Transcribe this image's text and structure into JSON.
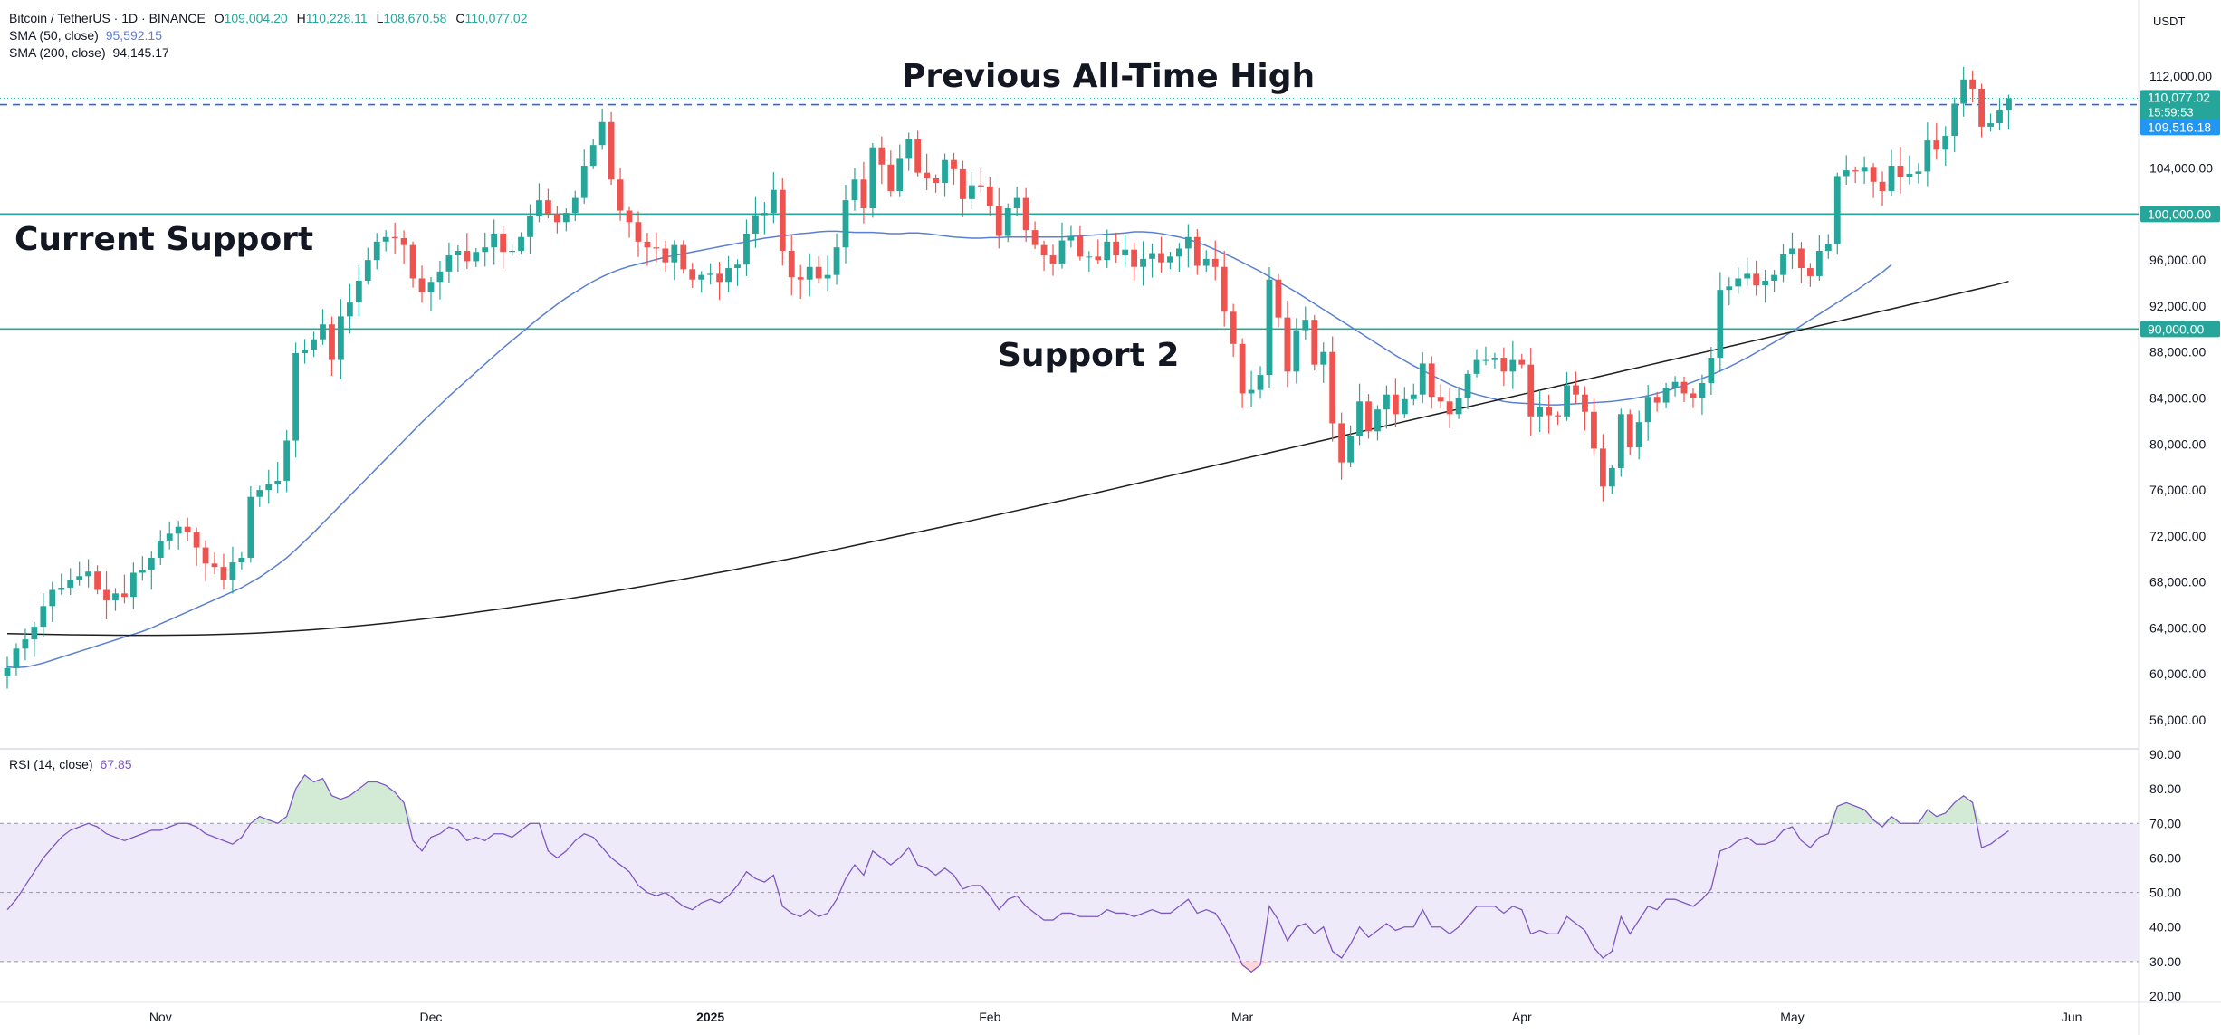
{
  "header": {
    "symbol": "Bitcoin / TetherUS · 1D · BINANCE",
    "ohlc": [
      {
        "key": "O",
        "value": "109,004.20"
      },
      {
        "key": "H",
        "value": "110,228.11"
      },
      {
        "key": "L",
        "value": "108,670.58"
      },
      {
        "key": "C",
        "value": "110,077.02"
      }
    ],
    "sma50_label": "SMA (50, close)",
    "sma50_value": "95,592.15",
    "sma200_label": "SMA (200, close)",
    "sma200_value": "94,145.17",
    "rsi_label": "RSI (14, close)",
    "rsi_value": "67.85",
    "currency": "USDT"
  },
  "annotations": {
    "ath_label": "Previous All-Time High",
    "support_label": "Current Support",
    "support2_label": "Support 2"
  },
  "price_tags": {
    "last_price": "110,077.02",
    "countdown": "15:59:53",
    "prev_level": "109,516.18",
    "support": "100,000.00",
    "support2": "90,000.00"
  },
  "colors": {
    "up": "#26a69a",
    "down": "#ef5350",
    "sma50": "#5b7fd2",
    "sma200": "#1e1e1e",
    "support_line": "#26a69a",
    "ath_line": "#2962ff",
    "rsi_line": "#7e57c2",
    "rsi_band": "#efeafa",
    "tag_blue": "#2196f3",
    "tag_green": "#26a69a"
  },
  "chart_data": [
    {
      "type": "candlestick",
      "title": "Bitcoin / TetherUS · 1D · BINANCE",
      "ylabel": "USDT",
      "ylim": [
        54000,
        116000
      ],
      "y_ticks": [
        "56,000.00",
        "60,000.00",
        "64,000.00",
        "68,000.00",
        "72,000.00",
        "76,000.00",
        "80,000.00",
        "84,000.00",
        "88,000.00",
        "92,000.00",
        "96,000.00",
        "104,000.00",
        "112,000.00"
      ],
      "x_ticks": [
        "Nov",
        "Dec",
        "2025",
        "Feb",
        "Mar",
        "Apr",
        "May",
        "Jun"
      ],
      "x_tick_bold": "2025",
      "x_tick_days": [
        17,
        47,
        78,
        109,
        137,
        168,
        198,
        229
      ],
      "start_day_index": 0,
      "start_date": "2024-10-15",
      "horizontal_levels": [
        {
          "name": "Previous All-Time High",
          "value": 109516,
          "style": "dashed"
        },
        {
          "name": "Current Support",
          "value": 100000,
          "style": "solid"
        },
        {
          "name": "Support 2",
          "value": 90000,
          "style": "solid"
        }
      ],
      "close": [
        60500,
        62200,
        63000,
        64100,
        65900,
        67300,
        67500,
        68200,
        68500,
        68900,
        67300,
        66400,
        67000,
        66700,
        68800,
        69000,
        70100,
        71600,
        72200,
        72800,
        72300,
        71000,
        69600,
        69300,
        68200,
        69700,
        70100,
        75400,
        76000,
        76500,
        76800,
        80300,
        87900,
        88200,
        89100,
        90400,
        87300,
        91100,
        92300,
        94200,
        96000,
        97600,
        98000,
        97900,
        97300,
        94400,
        93200,
        94100,
        95000,
        96400,
        96800,
        95900,
        96700,
        97100,
        98300,
        96700,
        96800,
        98000,
        99800,
        101200,
        100000,
        99300,
        100100,
        101400,
        104200,
        106000,
        108000,
        103000,
        100300,
        99300,
        97600,
        97100,
        97000,
        95800,
        97300,
        95200,
        94300,
        94700,
        94800,
        94100,
        95300,
        95600,
        98300,
        99900,
        100100,
        102100,
        96800,
        94500,
        94300,
        95400,
        94400,
        94700,
        97100,
        101200,
        103000,
        100500,
        105800,
        104300,
        102000,
        104800,
        106500,
        103600,
        103100,
        102700,
        104700,
        103900,
        101300,
        102500,
        102400,
        100700,
        98100,
        100500,
        101400,
        98600,
        97300,
        96400,
        95700,
        97700,
        98100,
        96300,
        96300,
        96000,
        97600,
        96400,
        96900,
        95400,
        96100,
        96600,
        95800,
        96300,
        97000,
        98000,
        95500,
        96100,
        95400,
        91500,
        88700,
        84400,
        84700,
        86000,
        94300,
        91000,
        86300,
        89900,
        90800,
        86900,
        88000,
        81800,
        78400,
        80700,
        83700,
        81100,
        83000,
        84300,
        82600,
        83900,
        84300,
        87000,
        84100,
        83700,
        82600,
        84000,
        86100,
        87300,
        87300,
        87500,
        86300,
        87300,
        86900,
        82400,
        83200,
        82500,
        82400,
        85100,
        84300,
        82800,
        79600,
        76300,
        77900,
        82600,
        79700,
        81900,
        84100,
        83600,
        84900,
        85400,
        84400,
        84000,
        85300,
        87500,
        93400,
        93700,
        94400,
        94800,
        93800,
        94200,
        94700,
        96500,
        97000,
        95300,
        94600,
        96800,
        97400,
        103300,
        103800,
        103700,
        104100,
        102800,
        102000,
        104200,
        103200,
        103500,
        103700,
        106400,
        105600,
        106800,
        109600,
        111700,
        110900,
        107600,
        107900,
        109000,
        110077
      ],
      "open_first": 59800,
      "sma50": [
        60600,
        60550,
        60600,
        60750,
        60950,
        61200,
        61450,
        61700,
        61950,
        62200,
        62450,
        62700,
        62950,
        63200,
        63450,
        63700,
        64000,
        64350,
        64700,
        65050,
        65400,
        65750,
        66100,
        66450,
        66800,
        67150,
        67500,
        67950,
        68400,
        68950,
        69500,
        70100,
        70800,
        71550,
        72300,
        73100,
        73900,
        74700,
        75500,
        76300,
        77100,
        77900,
        78700,
        79500,
        80300,
        81100,
        81900,
        82650,
        83400,
        84150,
        84850,
        85550,
        86250,
        86950,
        87650,
        88350,
        89000,
        89650,
        90300,
        90950,
        91550,
        92150,
        92700,
        93200,
        93700,
        94150,
        94550,
        94900,
        95200,
        95450,
        95650,
        95850,
        96050,
        96250,
        96400,
        96550,
        96700,
        96850,
        97000,
        97150,
        97300,
        97450,
        97600,
        97750,
        97900,
        98000,
        98100,
        98200,
        98300,
        98350,
        98450,
        98500,
        98500,
        98450,
        98400,
        98400,
        98400,
        98350,
        98300,
        98300,
        98350,
        98350,
        98300,
        98200,
        98100,
        98000,
        97950,
        97900,
        97900,
        97950,
        97950,
        98000,
        98000,
        98000,
        98000,
        98000,
        98000,
        98000,
        98050,
        98100,
        98150,
        98200,
        98250,
        98300,
        98350,
        98450,
        98450,
        98400,
        98300,
        98150,
        98000,
        97800,
        97550,
        97250,
        96900,
        96550,
        96200,
        95800,
        95400,
        95000,
        94550,
        94100,
        93650,
        93200,
        92700,
        92200,
        91700,
        91200,
        90700,
        90200,
        89700,
        89200,
        88700,
        88200,
        87700,
        87250,
        86800,
        86400,
        86000,
        85600,
        85200,
        84850,
        84550,
        84300,
        84100,
        83900,
        83700,
        83600,
        83550,
        83500,
        83450,
        83400,
        83400,
        83450,
        83500,
        83550,
        83600,
        83650,
        83700,
        83800,
        83900,
        84050,
        84200,
        84400,
        84600,
        84850,
        85100,
        85400,
        85700,
        86000,
        86350,
        86700,
        87100,
        87500,
        87950,
        88400,
        88850,
        89300,
        89800,
        90300,
        90800,
        91300,
        91800,
        92300,
        92800,
        93300,
        93850,
        94400,
        94950,
        95592
      ],
      "sma200": [
        63500,
        63480,
        63460,
        63440,
        63420,
        63400,
        63390,
        63380,
        63370,
        63360,
        63350,
        63350,
        63350,
        63360,
        63370,
        63380,
        63400,
        63430,
        63460,
        63500,
        63540,
        63600,
        63660,
        63730,
        63800,
        63880,
        63960,
        64050,
        64150,
        64250,
        64360,
        64470,
        64590,
        64710,
        64840,
        64970,
        65110,
        65250,
        65400,
        65550,
        65700,
        65860,
        66020,
        66180,
        66350,
        66520,
        66690,
        66870,
        67050,
        67230,
        67410,
        67600,
        67790,
        67980,
        68170,
        68370,
        68570,
        68770,
        68970,
        69180,
        69390,
        69600,
        69810,
        70020,
        70240,
        70460,
        70680,
        70900,
        71130,
        71360,
        71590,
        71820,
        72050,
        72280,
        72510,
        72740,
        72970,
        73200,
        73440,
        73680,
        73920,
        74160,
        74400,
        74640,
        74880,
        75120,
        75360,
        75600,
        75850,
        76100,
        76350,
        76600,
        76850,
        77100,
        77350,
        77600,
        77850,
        78100,
        78350,
        78600,
        78850,
        79100,
        79350,
        79600,
        79850,
        80100,
        80350,
        80600,
        80850,
        81100,
        81350,
        81600,
        81850,
        82100,
        82350,
        82600,
        82850,
        83100,
        83350,
        83600,
        83850,
        84100,
        84350,
        84600,
        84850,
        85100,
        85350,
        85600,
        85850,
        86100,
        86350,
        86600,
        86850,
        87100,
        87350,
        87600,
        87850,
        88100,
        88350,
        88600,
        88850,
        89100,
        89350,
        89600,
        89850,
        90100,
        90350,
        90600,
        90850,
        91100,
        91350,
        91600,
        91850,
        92100,
        92350,
        92600,
        92850,
        93100,
        93350,
        93600,
        93850,
        94145
      ],
      "rsi": [
        45,
        48,
        52,
        56,
        60,
        63,
        66,
        68,
        69,
        70,
        69,
        67,
        66,
        65,
        66,
        67,
        68,
        68,
        69,
        70,
        70,
        69,
        67,
        66,
        65,
        64,
        66,
        70,
        72,
        71,
        70,
        72,
        80,
        84,
        82,
        83,
        78,
        77,
        78,
        80,
        82,
        82,
        81,
        79,
        76,
        65,
        62,
        66,
        67,
        69,
        68,
        65,
        66,
        65,
        67,
        67,
        66,
        68,
        70,
        70,
        62,
        60,
        62,
        65,
        67,
        66,
        63,
        60,
        58,
        56,
        52,
        50,
        49,
        50,
        48,
        46,
        45,
        47,
        48,
        47,
        49,
        52,
        56,
        54,
        53,
        55,
        46,
        44,
        43,
        45,
        43,
        44,
        48,
        54,
        58,
        55,
        62,
        60,
        58,
        60,
        63,
        58,
        57,
        55,
        57,
        55,
        51,
        52,
        52,
        49,
        45,
        48,
        49,
        46,
        44,
        42,
        42,
        44,
        44,
        43,
        43,
        43,
        45,
        44,
        44,
        43,
        44,
        45,
        44,
        44,
        46,
        48,
        44,
        45,
        44,
        40,
        35,
        29,
        27,
        29,
        46,
        42,
        36,
        40,
        41,
        38,
        40,
        33,
        31,
        35,
        40,
        37,
        39,
        41,
        39,
        40,
        40,
        45,
        40,
        40,
        38,
        40,
        43,
        46,
        46,
        46,
        44,
        46,
        45,
        38,
        39,
        38,
        38,
        43,
        41,
        39,
        34,
        31,
        33,
        43,
        38,
        42,
        46,
        45,
        48,
        48,
        47,
        46,
        48,
        51,
        62,
        63,
        65,
        66,
        64,
        64,
        65,
        68,
        69,
        65,
        63,
        66,
        67,
        75,
        76,
        75,
        74,
        71,
        69,
        72,
        70,
        70,
        70,
        74,
        72,
        73,
        76,
        78,
        76,
        63,
        64,
        66,
        67.85
      ],
      "rsi_ylim": [
        18,
        92
      ],
      "rsi_ticks": [
        "20.00",
        "30.00",
        "40.00",
        "50.00",
        "60.00",
        "70.00",
        "80.00",
        "90.00"
      ],
      "rsi_levels": [
        30,
        50,
        70
      ]
    }
  ]
}
